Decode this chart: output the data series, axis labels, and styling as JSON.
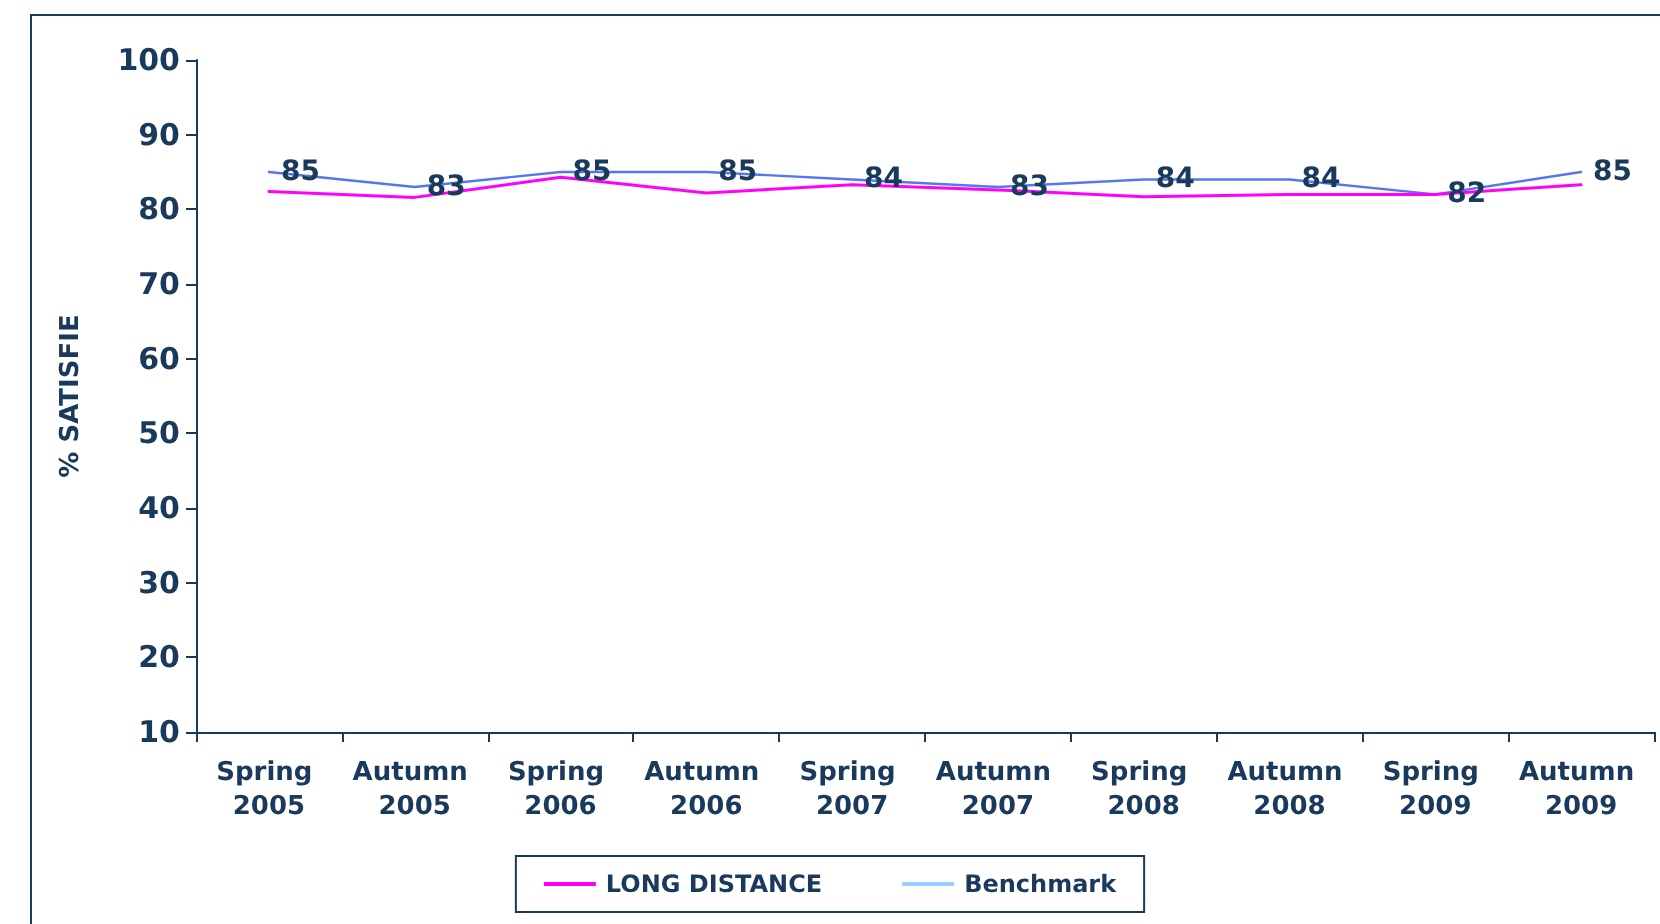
{
  "chart_data": {
    "type": "line",
    "ylabel": "% SATISFIE",
    "categories": [
      "Spring 2005",
      "Autumn 2005",
      "Spring 2006",
      "Autumn 2006",
      "Spring 2007",
      "Autumn 2007",
      "Spring 2008",
      "Autumn 2008",
      "Spring 2009",
      "Autumn 2009"
    ],
    "series": [
      {
        "color": "#5577ee",
        "values": [
          85,
          83,
          85,
          85,
          84,
          83,
          84,
          84,
          82,
          85
        ],
        "value_labels": [
          "85",
          "83",
          "85",
          "85",
          "84",
          "83",
          "84",
          "84",
          "82",
          "85"
        ]
      },
      {
        "name": "LONG DISTANCE",
        "color": "#ff00ff",
        "values": [
          82.4,
          81.6,
          84.3,
          82.2,
          83.3,
          82.6,
          81.7,
          82.0,
          82.0,
          83.3
        ]
      },
      {
        "name": "Benchmark",
        "color": "#99ccff",
        "values": [
          null,
          null,
          null,
          null,
          null,
          null,
          null,
          null,
          null,
          null
        ]
      }
    ],
    "ylim": [
      10,
      100
    ],
    "yticks": [
      10,
      20,
      30,
      40,
      50,
      60,
      70,
      80,
      90,
      100
    ],
    "grid": false,
    "legend": "bottom",
    "marker": "none",
    "line_style": "solid"
  }
}
